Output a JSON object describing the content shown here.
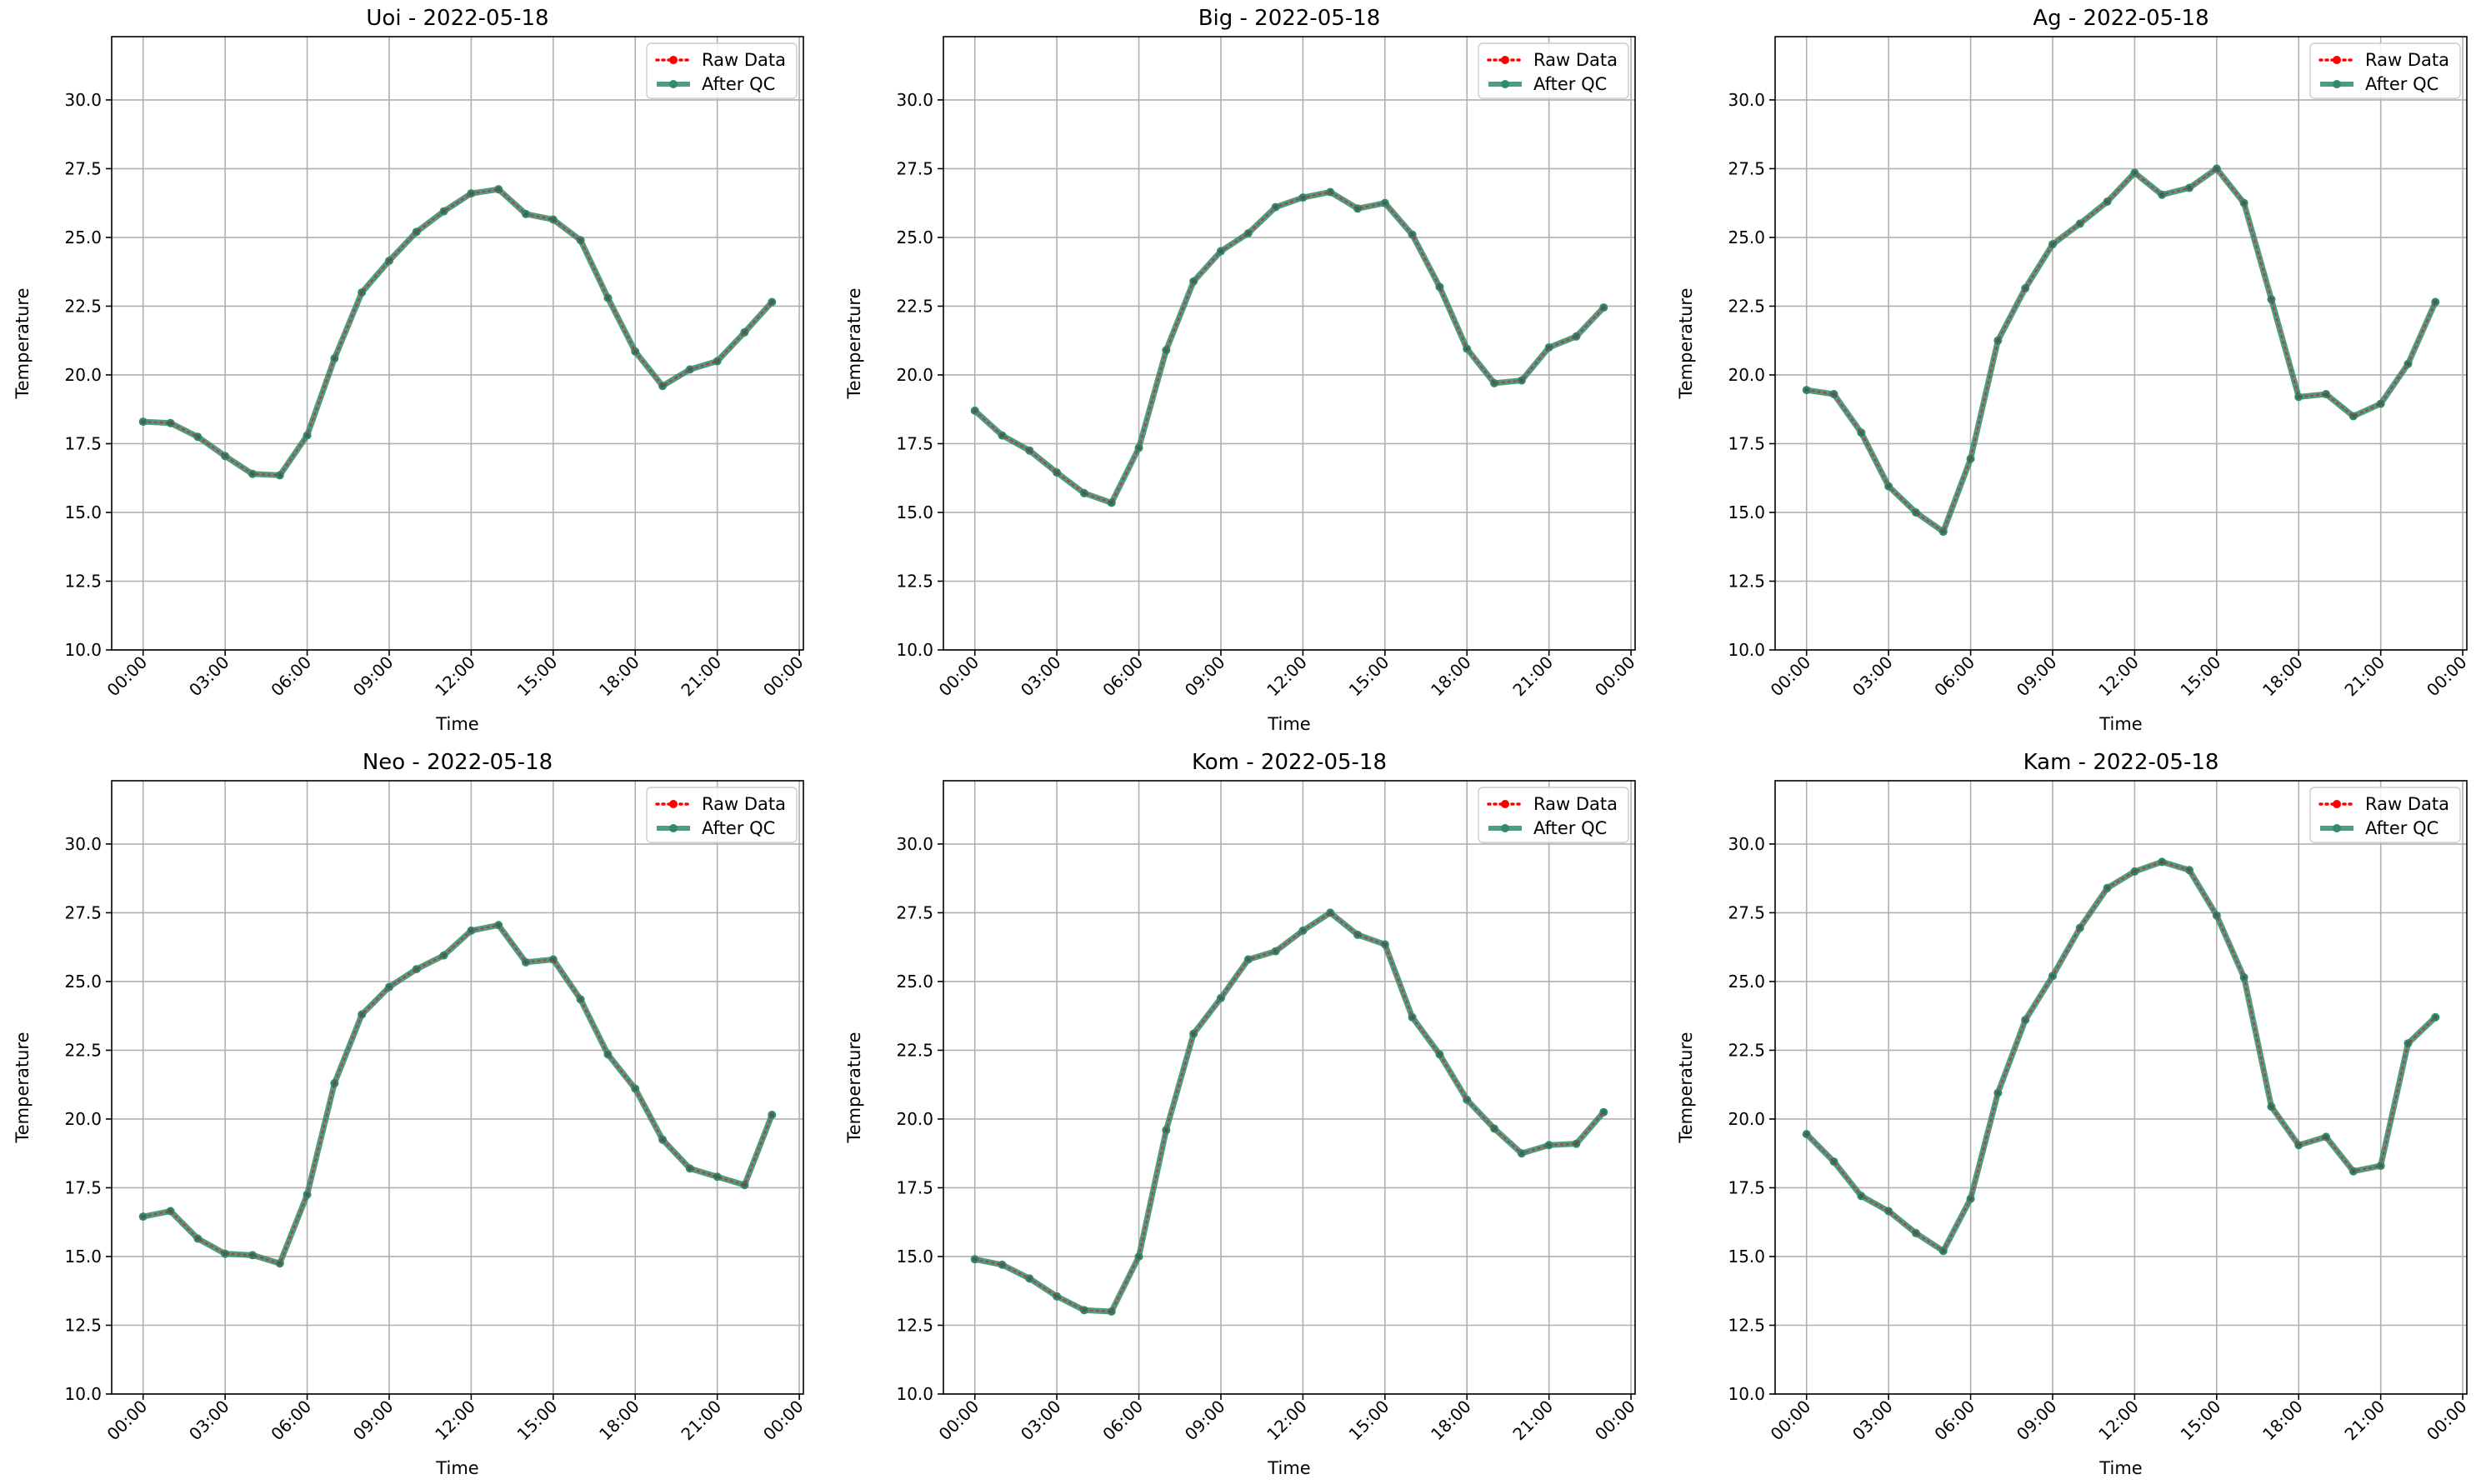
{
  "figure": {
    "background": "#ffffff"
  },
  "style": {
    "raw_color": "#ff0000",
    "qc_color": "#2e8b6e",
    "grid_color": "#b0b0b0",
    "axis_color": "#000000"
  },
  "chart_data": [
    {
      "type": "line",
      "title": "Uoi - 2022-05-18",
      "xlabel": "Time",
      "ylabel": "Temperature",
      "ylim": [
        10.0,
        32.3
      ],
      "xlim_hours": [
        -1.15,
        24.15
      ],
      "x": [
        "00:00",
        "01:00",
        "02:00",
        "03:00",
        "04:00",
        "05:00",
        "06:00",
        "07:00",
        "08:00",
        "09:00",
        "10:00",
        "11:00",
        "12:00",
        "13:00",
        "14:00",
        "15:00",
        "16:00",
        "17:00",
        "18:00",
        "19:00",
        "20:00",
        "21:00",
        "22:00",
        "23:00"
      ],
      "x_ticks": [
        "00:00",
        "03:00",
        "06:00",
        "09:00",
        "12:00",
        "15:00",
        "18:00",
        "21:00",
        "00:00"
      ],
      "y_ticks": [
        "10.0",
        "12.5",
        "15.0",
        "17.5",
        "20.0",
        "22.5",
        "25.0",
        "27.5",
        "30.0"
      ],
      "grid": true,
      "legend_position": "top-right",
      "series": [
        {
          "name": "Raw Data",
          "style": "dotted-red-markers",
          "values": [
            18.3,
            18.25,
            17.75,
            17.05,
            16.4,
            16.35,
            17.8,
            20.6,
            23.0,
            24.15,
            25.2,
            25.95,
            26.6,
            26.75,
            25.85,
            25.65,
            24.9,
            22.8,
            20.85,
            19.6,
            20.2,
            20.5,
            21.55,
            22.65
          ]
        },
        {
          "name": "After QC",
          "style": "solid-green-markers",
          "values": [
            18.3,
            18.25,
            17.75,
            17.05,
            16.4,
            16.35,
            17.8,
            20.6,
            23.0,
            24.15,
            25.2,
            25.95,
            26.6,
            26.75,
            25.85,
            25.65,
            24.9,
            22.8,
            20.85,
            19.6,
            20.2,
            20.5,
            21.55,
            22.65
          ]
        }
      ]
    },
    {
      "type": "line",
      "title": "Big - 2022-05-18",
      "xlabel": "Time",
      "ylabel": "Temperature",
      "ylim": [
        10.0,
        32.3
      ],
      "xlim_hours": [
        -1.15,
        24.15
      ],
      "x": [
        "00:00",
        "01:00",
        "02:00",
        "03:00",
        "04:00",
        "05:00",
        "06:00",
        "07:00",
        "08:00",
        "09:00",
        "10:00",
        "11:00",
        "12:00",
        "13:00",
        "14:00",
        "15:00",
        "16:00",
        "17:00",
        "18:00",
        "19:00",
        "20:00",
        "21:00",
        "22:00",
        "23:00"
      ],
      "x_ticks": [
        "00:00",
        "03:00",
        "06:00",
        "09:00",
        "12:00",
        "15:00",
        "18:00",
        "21:00",
        "00:00"
      ],
      "y_ticks": [
        "10.0",
        "12.5",
        "15.0",
        "17.5",
        "20.0",
        "22.5",
        "25.0",
        "27.5",
        "30.0"
      ],
      "grid": true,
      "legend_position": "top-right",
      "series": [
        {
          "name": "Raw Data",
          "style": "dotted-red-markers",
          "values": [
            18.7,
            17.8,
            17.25,
            16.45,
            15.7,
            15.35,
            17.35,
            20.9,
            23.4,
            24.5,
            25.15,
            26.1,
            26.45,
            26.65,
            26.05,
            26.25,
            25.1,
            23.2,
            20.95,
            19.7,
            19.8,
            21.0,
            21.4,
            22.45
          ]
        },
        {
          "name": "After QC",
          "style": "solid-green-markers",
          "values": [
            18.7,
            17.8,
            17.25,
            16.45,
            15.7,
            15.35,
            17.35,
            20.9,
            23.4,
            24.5,
            25.15,
            26.1,
            26.45,
            26.65,
            26.05,
            26.25,
            25.1,
            23.2,
            20.95,
            19.7,
            19.8,
            21.0,
            21.4,
            22.45
          ]
        }
      ]
    },
    {
      "type": "line",
      "title": "Ag - 2022-05-18",
      "xlabel": "Time",
      "ylabel": "Temperature",
      "ylim": [
        10.0,
        32.3
      ],
      "xlim_hours": [
        -1.15,
        24.15
      ],
      "x": [
        "00:00",
        "01:00",
        "02:00",
        "03:00",
        "04:00",
        "05:00",
        "06:00",
        "07:00",
        "08:00",
        "09:00",
        "10:00",
        "11:00",
        "12:00",
        "13:00",
        "14:00",
        "15:00",
        "16:00",
        "17:00",
        "18:00",
        "19:00",
        "20:00",
        "21:00",
        "22:00",
        "23:00"
      ],
      "x_ticks": [
        "00:00",
        "03:00",
        "06:00",
        "09:00",
        "12:00",
        "15:00",
        "18:00",
        "21:00",
        "00:00"
      ],
      "y_ticks": [
        "10.0",
        "12.5",
        "15.0",
        "17.5",
        "20.0",
        "22.5",
        "25.0",
        "27.5",
        "30.0"
      ],
      "grid": true,
      "legend_position": "top-right",
      "series": [
        {
          "name": "Raw Data",
          "style": "dotted-red-markers",
          "values": [
            19.45,
            19.3,
            17.9,
            15.95,
            15.0,
            14.3,
            16.95,
            21.25,
            23.15,
            24.75,
            25.5,
            26.3,
            27.35,
            26.55,
            26.8,
            27.5,
            26.25,
            22.75,
            19.2,
            19.3,
            18.5,
            18.95,
            20.4,
            22.65
          ]
        },
        {
          "name": "After QC",
          "style": "solid-green-markers",
          "values": [
            19.45,
            19.3,
            17.9,
            15.95,
            15.0,
            14.3,
            16.95,
            21.25,
            23.15,
            24.75,
            25.5,
            26.3,
            27.35,
            26.55,
            26.8,
            27.5,
            26.25,
            22.75,
            19.2,
            19.3,
            18.5,
            18.95,
            20.4,
            22.65
          ]
        }
      ]
    },
    {
      "type": "line",
      "title": "Neo - 2022-05-18",
      "xlabel": "Time",
      "ylabel": "Temperature",
      "ylim": [
        10.0,
        32.3
      ],
      "xlim_hours": [
        -1.15,
        24.15
      ],
      "x": [
        "00:00",
        "01:00",
        "02:00",
        "03:00",
        "04:00",
        "05:00",
        "06:00",
        "07:00",
        "08:00",
        "09:00",
        "10:00",
        "11:00",
        "12:00",
        "13:00",
        "14:00",
        "15:00",
        "16:00",
        "17:00",
        "18:00",
        "19:00",
        "20:00",
        "21:00",
        "22:00",
        "23:00"
      ],
      "x_ticks": [
        "00:00",
        "03:00",
        "06:00",
        "09:00",
        "12:00",
        "15:00",
        "18:00",
        "21:00",
        "00:00"
      ],
      "y_ticks": [
        "10.0",
        "12.5",
        "15.0",
        "17.5",
        "20.0",
        "22.5",
        "25.0",
        "27.5",
        "30.0"
      ],
      "grid": true,
      "legend_position": "top-right",
      "series": [
        {
          "name": "Raw Data",
          "style": "dotted-red-markers",
          "values": [
            16.45,
            16.65,
            15.65,
            15.1,
            15.05,
            14.75,
            17.25,
            21.3,
            23.8,
            24.8,
            25.45,
            25.95,
            26.85,
            27.05,
            25.7,
            25.8,
            24.35,
            22.35,
            21.1,
            19.25,
            18.2,
            17.9,
            17.6,
            20.15
          ]
        },
        {
          "name": "After QC",
          "style": "solid-green-markers",
          "values": [
            16.45,
            16.65,
            15.65,
            15.1,
            15.05,
            14.75,
            17.25,
            21.3,
            23.8,
            24.8,
            25.45,
            25.95,
            26.85,
            27.05,
            25.7,
            25.8,
            24.35,
            22.35,
            21.1,
            19.25,
            18.2,
            17.9,
            17.6,
            20.15
          ]
        }
      ]
    },
    {
      "type": "line",
      "title": "Kom - 2022-05-18",
      "xlabel": "Time",
      "ylabel": "Temperature",
      "ylim": [
        10.0,
        32.3
      ],
      "xlim_hours": [
        -1.15,
        24.15
      ],
      "x": [
        "00:00",
        "01:00",
        "02:00",
        "03:00",
        "04:00",
        "05:00",
        "06:00",
        "07:00",
        "08:00",
        "09:00",
        "10:00",
        "11:00",
        "12:00",
        "13:00",
        "14:00",
        "15:00",
        "16:00",
        "17:00",
        "18:00",
        "19:00",
        "20:00",
        "21:00",
        "22:00",
        "23:00"
      ],
      "x_ticks": [
        "00:00",
        "03:00",
        "06:00",
        "09:00",
        "12:00",
        "15:00",
        "18:00",
        "21:00",
        "00:00"
      ],
      "y_ticks": [
        "10.0",
        "12.5",
        "15.0",
        "17.5",
        "20.0",
        "22.5",
        "25.0",
        "27.5",
        "30.0"
      ],
      "grid": true,
      "legend_position": "top-right",
      "series": [
        {
          "name": "Raw Data",
          "style": "dotted-red-markers",
          "values": [
            14.9,
            14.7,
            14.2,
            13.55,
            13.05,
            13.0,
            15.0,
            19.6,
            23.1,
            24.4,
            25.8,
            26.1,
            26.85,
            27.5,
            26.7,
            26.35,
            23.7,
            22.35,
            20.7,
            19.65,
            18.75,
            19.05,
            19.1,
            20.25
          ]
        },
        {
          "name": "After QC",
          "style": "solid-green-markers",
          "values": [
            14.9,
            14.7,
            14.2,
            13.55,
            13.05,
            13.0,
            15.0,
            19.6,
            23.1,
            24.4,
            25.8,
            26.1,
            26.85,
            27.5,
            26.7,
            26.35,
            23.7,
            22.35,
            20.7,
            19.65,
            18.75,
            19.05,
            19.1,
            20.25
          ]
        }
      ]
    },
    {
      "type": "line",
      "title": "Kam - 2022-05-18",
      "xlabel": "Time",
      "ylabel": "Temperature",
      "ylim": [
        10.0,
        32.3
      ],
      "xlim_hours": [
        -1.15,
        24.15
      ],
      "x": [
        "00:00",
        "01:00",
        "02:00",
        "03:00",
        "04:00",
        "05:00",
        "06:00",
        "07:00",
        "08:00",
        "09:00",
        "10:00",
        "11:00",
        "12:00",
        "13:00",
        "14:00",
        "15:00",
        "16:00",
        "17:00",
        "18:00",
        "19:00",
        "20:00",
        "21:00",
        "22:00",
        "23:00"
      ],
      "x_ticks": [
        "00:00",
        "03:00",
        "06:00",
        "09:00",
        "12:00",
        "15:00",
        "18:00",
        "21:00",
        "00:00"
      ],
      "y_ticks": [
        "10.0",
        "12.5",
        "15.0",
        "17.5",
        "20.0",
        "22.5",
        "25.0",
        "27.5",
        "30.0"
      ],
      "grid": true,
      "legend_position": "top-right",
      "series": [
        {
          "name": "Raw Data",
          "style": "dotted-red-markers",
          "values": [
            19.45,
            18.45,
            17.2,
            16.65,
            15.85,
            15.2,
            17.1,
            20.95,
            23.6,
            25.2,
            26.95,
            28.4,
            29.0,
            29.35,
            29.05,
            27.4,
            25.15,
            20.45,
            19.05,
            19.35,
            18.1,
            18.3,
            22.75,
            23.7
          ]
        },
        {
          "name": "After QC",
          "style": "solid-green-markers",
          "values": [
            19.45,
            18.45,
            17.2,
            16.65,
            15.85,
            15.2,
            17.1,
            20.95,
            23.6,
            25.2,
            26.95,
            28.4,
            29.0,
            29.35,
            29.05,
            27.4,
            25.15,
            20.45,
            19.05,
            19.35,
            18.1,
            18.3,
            22.75,
            23.7
          ]
        }
      ]
    }
  ]
}
